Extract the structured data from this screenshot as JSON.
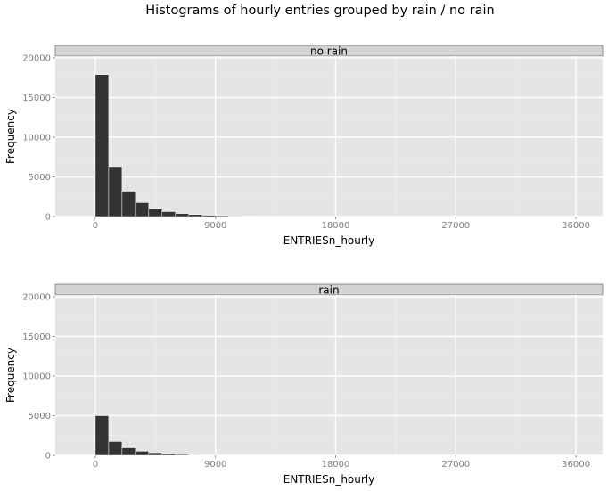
{
  "title": "Histograms of hourly entries grouped by rain / no rain",
  "chart_data": [
    {
      "type": "bar",
      "panel": "no rain",
      "title": "Histograms of hourly entries grouped by rain / no rain",
      "xlabel": "ENTRIESn_hourly",
      "ylabel": "Frequency",
      "xlim": [
        -3000,
        38000
      ],
      "ylim": [
        0,
        20000
      ],
      "xticks": [
        0,
        9000,
        18000,
        27000,
        36000
      ],
      "yticks": [
        0,
        5000,
        10000,
        15000,
        20000
      ],
      "bin_width": 1000,
      "bin_starts": [
        0,
        1000,
        2000,
        3000,
        4000,
        5000,
        6000,
        7000,
        8000,
        9000,
        10000,
        11000
      ],
      "values": [
        17900,
        6300,
        3200,
        1750,
        1000,
        620,
        380,
        250,
        160,
        110,
        70,
        45
      ],
      "bar_color": "#333333",
      "grid": true
    },
    {
      "type": "bar",
      "panel": "rain",
      "title": "Histograms of hourly entries grouped by rain / no rain",
      "xlabel": "ENTRIESn_hourly",
      "ylabel": "Frequency",
      "xlim": [
        -3000,
        38000
      ],
      "ylim": [
        0,
        20000
      ],
      "xticks": [
        0,
        9000,
        18000,
        27000,
        36000
      ],
      "yticks": [
        0,
        5000,
        10000,
        15000,
        20000
      ],
      "bin_width": 1000,
      "bin_starts": [
        0,
        1000,
        2000,
        3000,
        4000,
        5000,
        6000,
        7000
      ],
      "values": [
        5000,
        1750,
        950,
        520,
        330,
        190,
        110,
        60
      ],
      "bar_color": "#333333",
      "grid": true
    }
  ]
}
